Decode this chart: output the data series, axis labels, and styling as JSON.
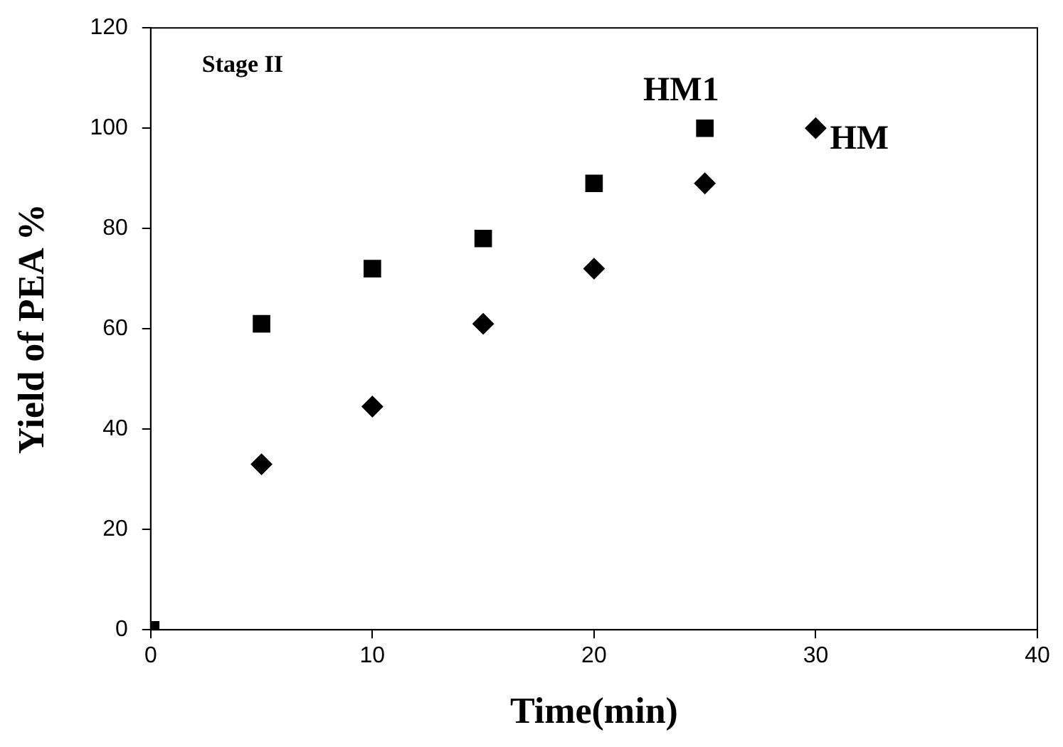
{
  "chart_data": {
    "type": "scatter",
    "xlabel": "Time(min)",
    "ylabel": "Yield of PEA %",
    "annotations": [
      "Stage II"
    ],
    "xlim": [
      0,
      40
    ],
    "xticks": [
      0,
      10,
      20,
      30,
      40
    ],
    "ylim": [
      0,
      120
    ],
    "yticks": [
      0,
      20,
      40,
      60,
      80,
      100,
      120
    ],
    "grid": false,
    "legend": false,
    "series": [
      {
        "name": "HM1",
        "color": "#000000",
        "marker": "square",
        "x": [
          0,
          5,
          10,
          15,
          20,
          25
        ],
        "values": [
          0,
          61,
          72,
          78,
          89,
          100
        ]
      },
      {
        "name": "HM",
        "color": "#000000",
        "marker": "diamond",
        "x": [
          5,
          10,
          15,
          20,
          25,
          30
        ],
        "values": [
          33,
          44.5,
          61,
          72,
          89,
          100
        ]
      }
    ]
  }
}
